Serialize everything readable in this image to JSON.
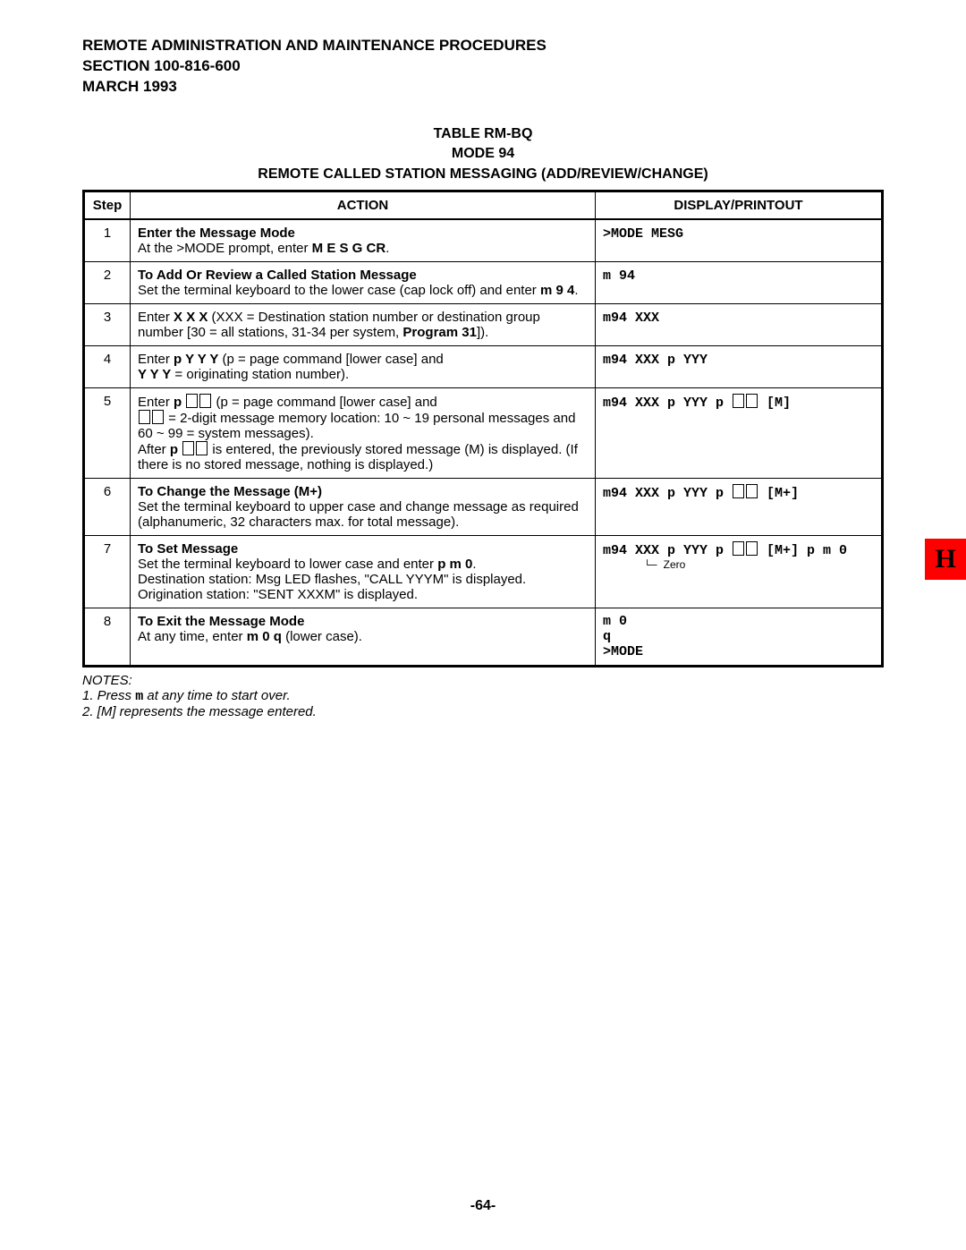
{
  "header": {
    "line1": "REMOTE ADMINISTRATION AND MAINTENANCE PROCEDURES",
    "line2": "SECTION 100-816-600",
    "line3": "MARCH 1993"
  },
  "table_title": {
    "line1": "TABLE RM-BQ",
    "line2": "MODE 94",
    "line3": "REMOTE CALLED STATION MESSAGING (ADD/REVIEW/CHANGE)"
  },
  "columns": {
    "step": "Step",
    "action": "ACTION",
    "display": "DISPLAY/PRINTOUT"
  },
  "rows": {
    "r1": {
      "step": "1",
      "action_bold": "Enter the Message Mode",
      "action_p1a": "At the >MODE prompt, enter ",
      "action_p1_key": "M E S G CR",
      "action_p1b": ".",
      "display": ">MODE MESG"
    },
    "r2": {
      "step": "2",
      "action_bold": "To Add Or Review a Called Station Message",
      "action_p1a": "Set the terminal keyboard to the lower case (cap lock off) and enter ",
      "action_p1_key": "m 9 4",
      "action_p1b": ".",
      "display": "m 94"
    },
    "r3": {
      "step": "3",
      "action_p1a": "Enter ",
      "action_p1_key": "X X X",
      "action_p1b": " (XXX = Destination station number or destination group number [30 = all stations, 31-34 per system, ",
      "action_p1_bold": "Program 31",
      "action_p1c": "]).",
      "display": "m94 XXX"
    },
    "r4": {
      "step": "4",
      "action_p1a": "Enter ",
      "action_p1_key": "p Y Y Y",
      "action_p1b": " (p = page command [lower case] and ",
      "action_p2_key": "Y Y Y",
      "action_p2b": " = originating station number).",
      "display": "m94 XXX p YYY"
    },
    "r5": {
      "step": "5",
      "action_p1a": "Enter ",
      "action_p1_key": "p",
      "action_p1b": " (p = page command [lower case] and ",
      "action_p2b": " = 2-digit message memory location: 10 ~ 19 personal messages and 60 ~ 99 = system messages).",
      "action_p3a": "After ",
      "action_p3_key": "p",
      "action_p3b": " is entered, the previously stored message (M) is displayed. (If there is no stored message, nothing is displayed.)",
      "display_a": "m94 XXX p YYY p ",
      "display_b": " [M]"
    },
    "r6": {
      "step": "6",
      "action_bold": "To Change the Message (M+)",
      "action_p1": "Set the terminal keyboard to upper case and change message as required (alphanumeric, 32 characters max. for total message).",
      "display_a": "m94 XXX p YYY p ",
      "display_b": " [M+]"
    },
    "r7": {
      "step": "7",
      "action_bold": "To Set Message",
      "action_p1a": "Set the terminal keyboard to lower case and enter ",
      "action_p1_key": "p m 0",
      "action_p1b": ".",
      "action_p2": "Destination station: Msg LED flashes, \"CALL YYYM\" is displayed.",
      "action_p3": "Origination station: \"SENT XXXM\" is displayed.",
      "display_a": "m94 XXX p YYY p ",
      "display_b": " [M+] p m 0",
      "display_sub": "Zero"
    },
    "r8": {
      "step": "8",
      "action_bold": "To Exit the Message Mode",
      "action_p1a": "At any time, enter ",
      "action_p1_key": "m 0 q",
      "action_p1b": " (lower case).",
      "display1": "m 0",
      "display2": "q",
      "display3": ">MODE"
    }
  },
  "notes": {
    "title": "NOTES:",
    "n1a": "1.  Press ",
    "n1_key": "m",
    "n1b": " at any time to start over.",
    "n2": "2.  [M] represents the message entered."
  },
  "pagenum": "-64-",
  "tab": "H"
}
